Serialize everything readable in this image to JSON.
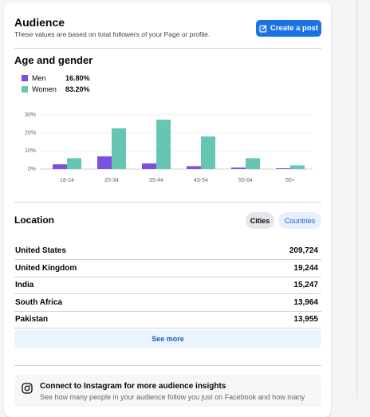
{
  "header": {
    "title": "Audience",
    "subtitle": "These values are based on total followers of your Page or profile.",
    "button": "Create a post"
  },
  "age_gender": {
    "title": "Age and gender",
    "shares": [
      "16.80%",
      "83.20%"
    ]
  },
  "chart_data": {
    "type": "bar",
    "categories": [
      "18-24",
      "25-34",
      "35-44",
      "45-54",
      "55-64",
      "65+"
    ],
    "series": [
      {
        "name": "Men",
        "color": "#7b4fe0",
        "values": [
          2.6,
          7,
          3.1,
          1.6,
          0.8,
          0.4
        ]
      },
      {
        "name": "Women",
        "color": "#67c6b3",
        "values": [
          6,
          22.5,
          27.3,
          18,
          6,
          2
        ]
      }
    ],
    "ylim": [
      0,
      30
    ],
    "yticks": [
      {
        "value": 0,
        "label": "0%"
      },
      {
        "value": 10,
        "label": "10%"
      },
      {
        "value": 20,
        "label": "20%"
      },
      {
        "value": 30,
        "label": "30%"
      }
    ],
    "grid": true
  },
  "location": {
    "title": "Location",
    "tabs": [
      "Cities",
      "Countries"
    ],
    "rows": [
      [
        "United States",
        "209,724"
      ],
      [
        "United Kingdom",
        "19,244"
      ],
      [
        "India",
        "15,247"
      ],
      [
        "South Africa",
        "13,964"
      ],
      [
        "Pakistan",
        "13,955"
      ]
    ],
    "button": "See more"
  },
  "instagram": {
    "title": "Connect to Instagram for more audience insights",
    "text": "See how many people in your audience follow you just on Facebook and how many"
  }
}
